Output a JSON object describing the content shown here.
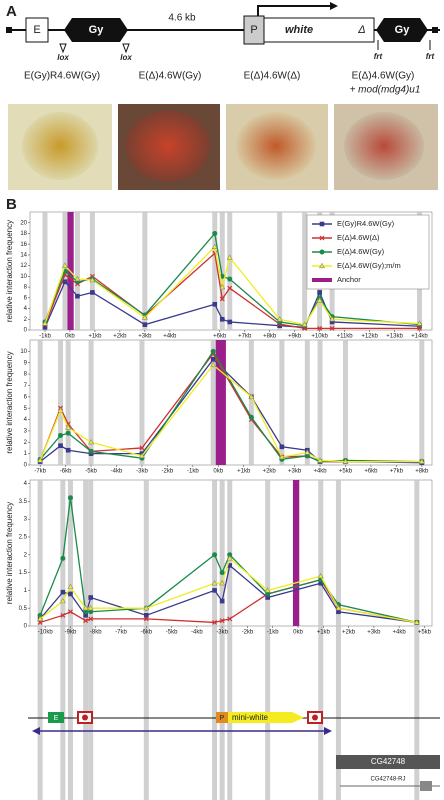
{
  "panel_a": {
    "letter": "A",
    "e": "E",
    "gy1": "Gy",
    "distance": "4.6 kb",
    "p": "P",
    "white": "white",
    "delta": "Δ",
    "gy2": "Gy",
    "lox1": "lox",
    "lox2": "lox",
    "frt1": "frt",
    "frt2": "frt",
    "genotypes": [
      "E(Gy)R4.6W(Gy)",
      "E(Δ)4.6W(Gy)",
      "E(Δ)4.6W(Δ)",
      "E(Δ)4.6W(Gy)"
    ],
    "extra": "+ mod(mdg4)u1"
  },
  "panel_b_letter": "B",
  "chart_data": [
    {
      "type": "line",
      "ylabel": "relative interaction frequency",
      "xlim": [
        -1.6,
        14.5
      ],
      "ylim": [
        0,
        22
      ],
      "yticks": [
        0,
        2,
        4,
        6,
        8,
        10,
        12,
        14,
        16,
        18,
        20
      ],
      "xticks": [
        {
          "value": -1,
          "label": "-1kb"
        },
        {
          "value": 0,
          "label": "0kb"
        },
        {
          "value": 1,
          "label": "+1kb"
        },
        {
          "value": 2,
          "label": "+2kb"
        },
        {
          "value": 3,
          "label": "+3kb"
        },
        {
          "value": 4,
          "label": "+4kb"
        },
        {
          "value": 6,
          "label": "+6kb"
        },
        {
          "value": 7,
          "label": "+7kb"
        },
        {
          "value": 8,
          "label": "+8kb"
        },
        {
          "value": 9,
          "label": "+9kb"
        },
        {
          "value": 10,
          "label": "+10kb"
        },
        {
          "value": 11,
          "label": "+11kb"
        },
        {
          "value": 12,
          "label": "+12kb"
        },
        {
          "value": 13,
          "label": "+13kb"
        },
        {
          "value": 14,
          "label": "+14kb"
        }
      ],
      "x": [
        -1,
        -0.2,
        0.3,
        0.9,
        3.0,
        5.8,
        6.1,
        6.4,
        8.4,
        9.4,
        10.0,
        10.5,
        14.0
      ],
      "legend": "top-right",
      "series": [
        {
          "name": "E(Gy)R4.6W(Gy)",
          "color": "#3a3a8c",
          "marker": "square",
          "values": [
            0.5,
            9,
            6.3,
            7,
            1,
            4.8,
            2,
            1.5,
            0.8,
            0.5,
            7,
            1.5,
            0.7
          ]
        },
        {
          "name": "E(Δ)4.6W(Δ)",
          "color": "#d03030",
          "marker": "cross",
          "values": [
            1,
            10.3,
            8.6,
            10,
            2.7,
            14.3,
            5.8,
            7.8,
            1.1,
            0.3,
            0.3,
            0.3,
            0.3
          ]
        },
        {
          "name": "E(Δ)4.6W(Gy)",
          "color": "#1a8a4a",
          "marker": "circle",
          "values": [
            1.5,
            11,
            9,
            9.5,
            2.8,
            18,
            10,
            9.5,
            1.5,
            0.8,
            6,
            2.5,
            1
          ]
        },
        {
          "name": "E(Δ)4.6W(Gy);m/m",
          "color": "#eeee22",
          "marker": "triangle",
          "values": [
            1.2,
            12,
            9.5,
            9.3,
            2.3,
            15.5,
            8,
            13.5,
            2,
            1,
            5.5,
            2,
            1.2
          ]
        }
      ],
      "anchor": {
        "name": "Anchor",
        "color": "#9b1f8a",
        "x": [
          -0.1,
          0.15
        ]
      }
    },
    {
      "type": "line",
      "ylabel": "relative interaction frequency",
      "xlim": [
        -7.4,
        8.4
      ],
      "ylim": [
        0,
        11
      ],
      "yticks": [
        0,
        1,
        2,
        3,
        4,
        5,
        6,
        7,
        8,
        9,
        10
      ],
      "xticks": [
        {
          "value": -7,
          "label": "-7kb"
        },
        {
          "value": -6,
          "label": "-6kb"
        },
        {
          "value": -5,
          "label": "-5kb"
        },
        {
          "value": -4,
          "label": "-4kb"
        },
        {
          "value": -3,
          "label": "-3kb"
        },
        {
          "value": -2,
          "label": "-2kb"
        },
        {
          "value": -1,
          "label": "-1kb"
        },
        {
          "value": 0,
          "label": "0kb"
        },
        {
          "value": 1,
          "label": "+1kb"
        },
        {
          "value": 2,
          "label": "+2kb"
        },
        {
          "value": 3,
          "label": "+3kb"
        },
        {
          "value": 4,
          "label": "+4kb"
        },
        {
          "value": 5,
          "label": "+5kb"
        },
        {
          "value": 6,
          "label": "+6kb"
        },
        {
          "value": 7,
          "label": "+7kb"
        },
        {
          "value": 8,
          "label": "+8kb"
        }
      ],
      "x": [
        -7,
        -6.2,
        -5.9,
        -5,
        -3,
        -0.2,
        1.3,
        2.5,
        3.5,
        4,
        5,
        8
      ],
      "series": [
        {
          "color": "#3a3a8c",
          "marker": "square",
          "values": [
            0.3,
            1.7,
            1.3,
            1.0,
            1.0,
            9.3,
            6.0,
            1.6,
            1.3,
            0.3,
            0.3,
            0.2
          ]
        },
        {
          "color": "#d03030",
          "marker": "cross",
          "values": [
            0.4,
            5.0,
            3.6,
            1.2,
            1.5,
            9.8,
            4.0,
            0.7,
            0.8,
            0.3,
            0.3,
            0.3
          ]
        },
        {
          "color": "#1a8a4a",
          "marker": "circle",
          "values": [
            0.5,
            2.6,
            2.8,
            1.2,
            0.6,
            10,
            4.2,
            0.5,
            0.8,
            0.3,
            0.4,
            0.3
          ]
        },
        {
          "color": "#eeee22",
          "marker": "triangle",
          "values": [
            0.4,
            4.8,
            3.3,
            2.0,
            0.8,
            8.8,
            6.0,
            0.7,
            1.1,
            0.4,
            0.3,
            0.3
          ]
        }
      ],
      "anchor": {
        "color": "#9b1f8a",
        "x": [
          -0.1,
          0.3
        ]
      }
    },
    {
      "type": "line",
      "ylabel": "relative interaction frequency",
      "xlim": [
        -10.6,
        5.3
      ],
      "ylim": [
        0,
        4.1
      ],
      "yticks": [
        0,
        0.5,
        1,
        1.5,
        2,
        2.5,
        3,
        3.5,
        4
      ],
      "xticks": [
        {
          "value": -10,
          "label": "-10kb"
        },
        {
          "value": -9,
          "label": "-9kb"
        },
        {
          "value": -8,
          "label": "-8kb"
        },
        {
          "value": -7,
          "label": "-7kb"
        },
        {
          "value": -6,
          "label": "-6kb"
        },
        {
          "value": -5,
          "label": "-5kb"
        },
        {
          "value": -4,
          "label": "-4kb"
        },
        {
          "value": -3,
          "label": "-3kb"
        },
        {
          "value": -2,
          "label": "-2kb"
        },
        {
          "value": -1,
          "label": "-1kb"
        },
        {
          "value": 0,
          "label": "0kb"
        },
        {
          "value": 1,
          "label": "+1kb"
        },
        {
          "value": 2,
          "label": "+2kb"
        },
        {
          "value": 3,
          "label": "+3kb"
        },
        {
          "value": 4,
          "label": "+4kb"
        },
        {
          "value": 5,
          "label": "+5kb"
        }
      ],
      "x": [
        -10.2,
        -9.3,
        -9.0,
        -8.4,
        -8.2,
        -6.0,
        -3.3,
        -3.0,
        -2.7,
        -1.2,
        0.9,
        1.6,
        4.7
      ],
      "series": [
        {
          "color": "#3a3a8c",
          "marker": "square",
          "values": [
            0.2,
            0.95,
            0.9,
            0.3,
            0.8,
            0.3,
            1.0,
            0.7,
            1.7,
            0.8,
            1.2,
            0.4,
            0.1
          ]
        },
        {
          "color": "#d03030",
          "marker": "cross",
          "values": [
            0.1,
            0.3,
            0.4,
            0.15,
            0.2,
            0.2,
            0.1,
            0.15,
            0.2,
            0.9,
            1.3,
            0.5,
            0.1
          ]
        },
        {
          "color": "#1a8a4a",
          "marker": "circle",
          "values": [
            0.3,
            1.9,
            3.6,
            0.4,
            0.4,
            0.5,
            2.0,
            1.5,
            2.0,
            0.9,
            1.3,
            0.6,
            0.1
          ]
        },
        {
          "color": "#eeee22",
          "marker": "triangle",
          "values": [
            0.2,
            0.7,
            1.1,
            0.5,
            0.5,
            0.5,
            1.2,
            1.2,
            1.9,
            1.0,
            1.4,
            0.5,
            0.1
          ]
        }
      ],
      "anchor": {
        "color": "#9b1f8a",
        "x": [
          -0.2,
          0.05
        ]
      }
    }
  ],
  "bottom": {
    "e": "E",
    "p": "P",
    "mini_white": "mini-white",
    "gene": "CG42748",
    "transcript": "CG42748-RJ"
  }
}
